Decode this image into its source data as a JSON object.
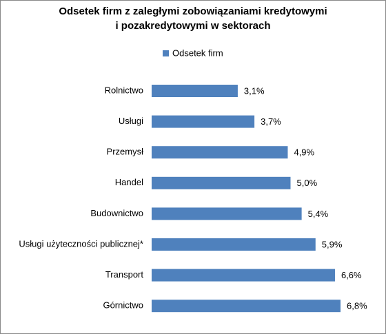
{
  "chart_data": {
    "type": "bar",
    "orientation": "horizontal",
    "title": [
      "Odsetek firm z zaległymi zobowiązaniami kredytowymi",
      "i pozakredytowymi w sektorach"
    ],
    "categories": [
      "Rolnictwo",
      "Usługi",
      "Przemysł",
      "Handel",
      "Budownictwo",
      "Usługi użyteczności publicznej*",
      "Transport",
      "Górnictwo"
    ],
    "series": [
      {
        "name": "Odsetek firm",
        "color": "#4f81bd",
        "values": [
          3.1,
          3.7,
          4.9,
          5.0,
          5.4,
          5.9,
          6.6,
          6.8
        ],
        "value_labels": [
          "3,1%",
          "3,7%",
          "4,9%",
          "5,0%",
          "5,4%",
          "5,9%",
          "6,6%",
          "6,8%"
        ]
      }
    ],
    "legend": "top"
  }
}
